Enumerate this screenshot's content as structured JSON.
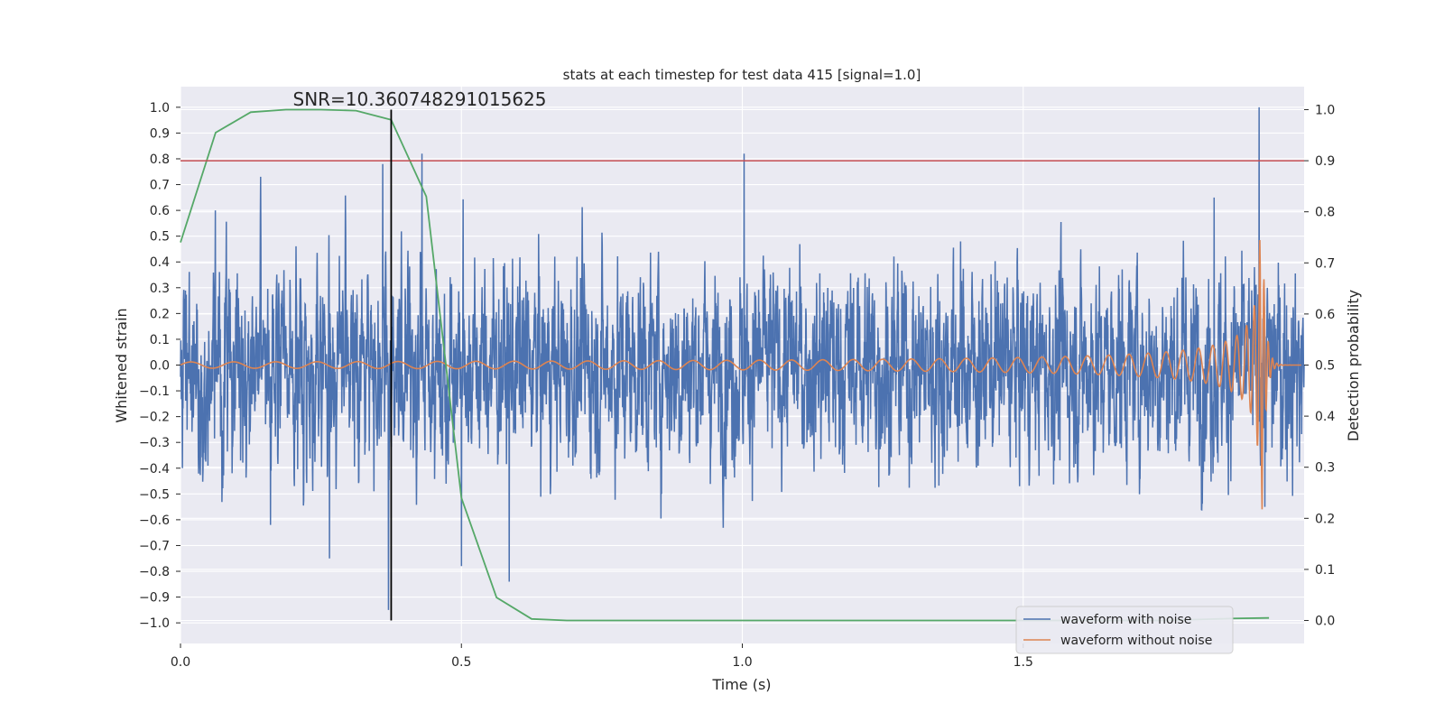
{
  "chart_data": {
    "type": "line",
    "title": "stats at each timestep for test data 415 [signal=1.0]",
    "xlabel": "Time (s)",
    "ylabel": "Whitened strain",
    "ylabel_right": "Detection probability",
    "xlim": [
      0.0,
      2.0
    ],
    "ylim": [
      -1.08,
      1.08
    ],
    "ylim_right": [
      -0.045,
      1.045
    ],
    "x_ticks": [
      "0.0",
      "0.5",
      "1.0",
      "1.5"
    ],
    "y_ticks": [
      "1.0",
      "0.9",
      "0.8",
      "0.7",
      "0.6",
      "0.5",
      "0.4",
      "0.3",
      "0.2",
      "0.1",
      "0.0",
      "−0.1",
      "−0.2",
      "−0.3",
      "−0.4",
      "−0.5",
      "−0.6",
      "−0.7",
      "−0.8",
      "−0.9",
      "−1.0"
    ],
    "y_ticks_right": [
      "1.0",
      "0.9",
      "0.8",
      "0.7",
      "0.6",
      "0.5",
      "0.4",
      "0.3",
      "0.2",
      "0.1",
      "0.0"
    ],
    "annotation": "SNR=10.360748291015625",
    "annotation_x": 0.2,
    "annotation_y": 1.0,
    "threshold_right": 0.9,
    "marker_x": 0.375,
    "grid": true,
    "legend_position": "lower right",
    "series": [
      {
        "name": "waveform with noise",
        "axis": "left",
        "color": "#4c72b0",
        "samples": 4096,
        "t_end": 2.0,
        "noise_std": 0.19,
        "peaks": [
          [
            0.062,
            0.6
          ],
          [
            0.16,
            -0.62
          ],
          [
            0.265,
            -0.75
          ],
          [
            0.36,
            0.78
          ],
          [
            0.37,
            -0.95
          ],
          [
            0.43,
            0.82
          ],
          [
            0.5,
            -0.78
          ],
          [
            0.585,
            -0.84
          ],
          [
            1.003,
            0.82
          ],
          [
            1.92,
            1.0
          ],
          [
            1.93,
            -0.55
          ],
          [
            1.84,
            0.65
          ]
        ]
      },
      {
        "name": "waveform without noise",
        "axis": "left",
        "color": "#dd8452",
        "model": "chirp",
        "t_start": 0.0,
        "t_merge": 1.925,
        "t_end": 1.995,
        "f_start": 13,
        "amp_start": 0.012,
        "amp_peak": 0.6
      },
      {
        "name": "",
        "axis": "right",
        "color": "#55a868",
        "x": [
          0.0,
          0.0625,
          0.125,
          0.1875,
          0.25,
          0.3125,
          0.375,
          0.4375,
          0.5,
          0.5625,
          0.625,
          0.6875,
          0.75,
          0.8125,
          0.875,
          0.9375,
          1.0,
          1.0625,
          1.125,
          1.1875,
          1.25,
          1.3125,
          1.375,
          1.4375,
          1.5,
          1.5625,
          1.625,
          1.6875,
          1.75,
          1.8125,
          1.875,
          1.9375
        ],
        "values": [
          0.74,
          0.955,
          0.995,
          1.0,
          1.0,
          0.998,
          0.98,
          0.83,
          0.24,
          0.045,
          0.003,
          0.0,
          0.0,
          0.0,
          0.0,
          0.0,
          0.0,
          0.0,
          0.0,
          0.0,
          0.0,
          0.0,
          0.0,
          0.0,
          0.0,
          0.0,
          0.0,
          0.0,
          0.0,
          0.002,
          0.004,
          0.005
        ]
      }
    ],
    "colors": {
      "plot_background": "#eaeaf2",
      "grid": "#ffffff",
      "threshold": "#c44e52",
      "marker": "#000000",
      "probability": "#55a868"
    }
  }
}
